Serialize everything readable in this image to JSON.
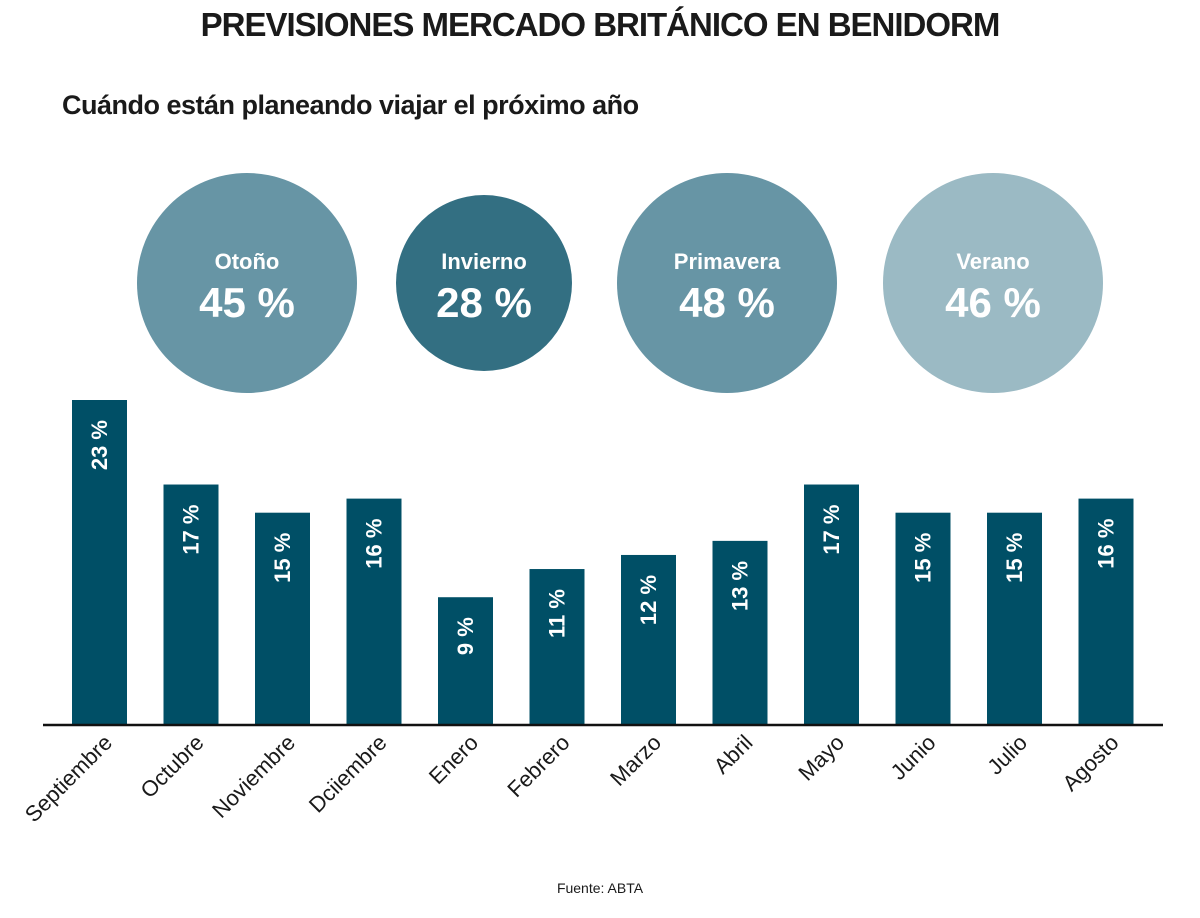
{
  "title": "PREVISIONES MERCADO BRITÁNICO EN BENIDORM",
  "subtitle": "Cuándo están planeando viajar el próximo año",
  "source": "Fuente: ABTA",
  "seasons": [
    {
      "label": "Otoño",
      "value": "45 %",
      "color": "#6795a5"
    },
    {
      "label": "Invierno",
      "value": "28 %",
      "color": "#336f82"
    },
    {
      "label": "Primavera",
      "value": "48 %",
      "color": "#6795a5"
    },
    {
      "label": "Verano",
      "value": "46 %",
      "color": "#9bbac4"
    }
  ],
  "chart_data": {
    "type": "bar",
    "categories": [
      "Septiembre",
      "Octubre",
      "Noviembre",
      "Dciiembre",
      "Enero",
      "Febrero",
      "Marzo",
      "Abril",
      "Mayo",
      "Junio",
      "Julio",
      "Agosto"
    ],
    "values": [
      23,
      17,
      15,
      16,
      9,
      11,
      12,
      13,
      17,
      15,
      15,
      16
    ],
    "data_labels": [
      "23 %",
      "17 %",
      "15 %",
      "16 %",
      "9 %",
      "11 %",
      "12 %",
      "13 %",
      "17 %",
      "15 %",
      "15 %",
      "16 %"
    ],
    "unit": "%",
    "bar_color": "#004f66",
    "grid": false,
    "legend": "none"
  }
}
